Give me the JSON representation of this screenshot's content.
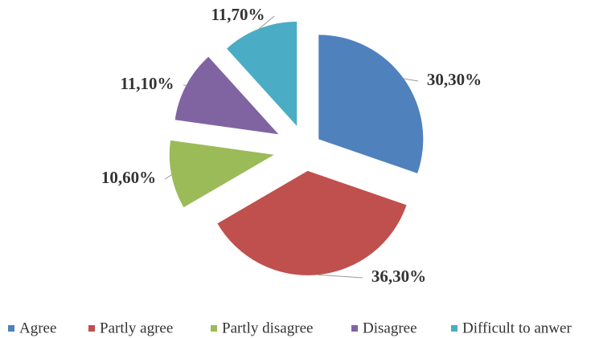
{
  "chart_data": {
    "type": "pie",
    "categories": [
      "Agree",
      "Partly agree",
      "Partly disagree",
      "Disagree",
      "Difficult to anwer"
    ],
    "values": [
      30.3,
      36.3,
      10.6,
      11.1,
      11.7
    ],
    "value_labels": [
      "30,30%",
      "36,30%",
      "10,60%",
      "11,10%",
      "11,70%"
    ],
    "colors": [
      "#4f81bd",
      "#c0504d",
      "#9bbb59",
      "#8064a2",
      "#4bacc6"
    ],
    "legend": "bottom"
  }
}
